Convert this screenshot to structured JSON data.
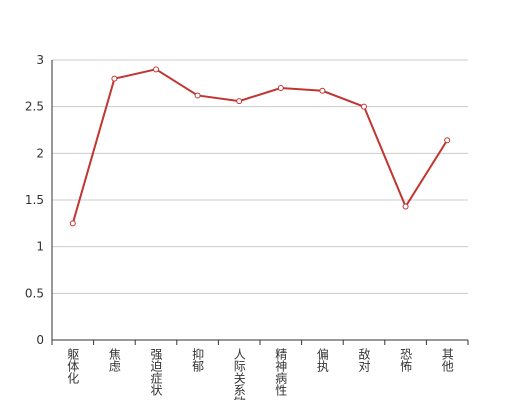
{
  "chart_data": {
    "type": "line",
    "categories": [
      "躯体化",
      "焦虑",
      "强迫症状",
      "抑郁",
      "人际关系敏感",
      "精神病性",
      "偏执",
      "敌对",
      "恐怖",
      "其他"
    ],
    "values": [
      1.25,
      2.8,
      2.9,
      2.62,
      2.56,
      2.7,
      2.67,
      2.5,
      1.43,
      2.14
    ],
    "color": "#c23531",
    "ylim": [
      0,
      3
    ],
    "yticks": [
      0,
      0.5,
      1,
      1.5,
      2,
      2.5,
      3
    ],
    "grid": true
  }
}
